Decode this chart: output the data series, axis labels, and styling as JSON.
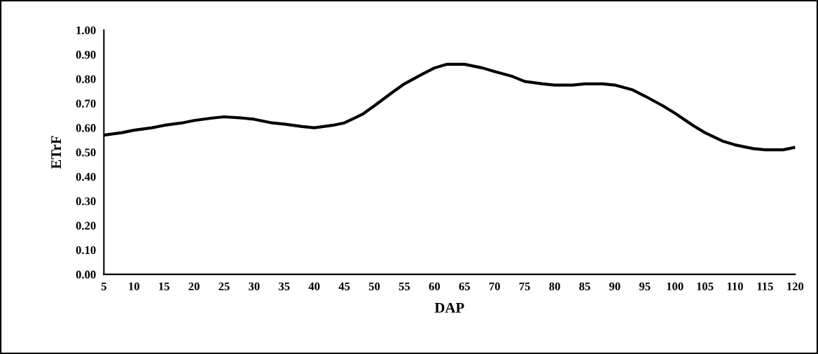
{
  "chart_data": {
    "type": "line",
    "xlabel": "DAP",
    "ylabel": "ETrF",
    "x": [
      5,
      8,
      10,
      13,
      15,
      18,
      20,
      23,
      25,
      28,
      30,
      33,
      35,
      38,
      40,
      43,
      45,
      48,
      50,
      53,
      55,
      58,
      60,
      62,
      65,
      68,
      70,
      73,
      75,
      78,
      80,
      83,
      85,
      88,
      90,
      93,
      95,
      98,
      100,
      103,
      105,
      108,
      110,
      113,
      115,
      118,
      120
    ],
    "series": [
      {
        "color": "#000000",
        "values": [
          0.57,
          0.58,
          0.59,
          0.6,
          0.61,
          0.62,
          0.63,
          0.64,
          0.645,
          0.64,
          0.635,
          0.62,
          0.615,
          0.605,
          0.6,
          0.61,
          0.62,
          0.655,
          0.69,
          0.745,
          0.78,
          0.82,
          0.845,
          0.86,
          0.86,
          0.845,
          0.83,
          0.81,
          0.79,
          0.78,
          0.775,
          0.775,
          0.78,
          0.78,
          0.775,
          0.755,
          0.73,
          0.69,
          0.66,
          0.61,
          0.58,
          0.545,
          0.53,
          0.515,
          0.51,
          0.51,
          0.52
        ]
      }
    ],
    "xlim": [
      5,
      120
    ],
    "xticks": [
      5,
      10,
      15,
      20,
      25,
      30,
      35,
      40,
      45,
      50,
      55,
      60,
      65,
      70,
      75,
      80,
      85,
      90,
      95,
      100,
      105,
      110,
      115,
      120
    ],
    "ylim": [
      0,
      1
    ],
    "yticks": [
      {
        "value": 0,
        "label": "0.00"
      },
      {
        "value": 0.1,
        "label": "0.10"
      },
      {
        "value": 0.2,
        "label": "0.20"
      },
      {
        "value": 0.3,
        "label": "0.30"
      },
      {
        "value": 0.4,
        "label": "0.40"
      },
      {
        "value": 0.5,
        "label": "0.50"
      },
      {
        "value": 0.6,
        "label": "0.60"
      },
      {
        "value": 0.7,
        "label": "0.70"
      },
      {
        "value": 0.8,
        "label": "0.80"
      },
      {
        "value": 0.9,
        "label": "0.90"
      },
      {
        "value": 1,
        "label": "1.00"
      }
    ],
    "grid": false,
    "marker": "none",
    "line_style": "solid"
  }
}
